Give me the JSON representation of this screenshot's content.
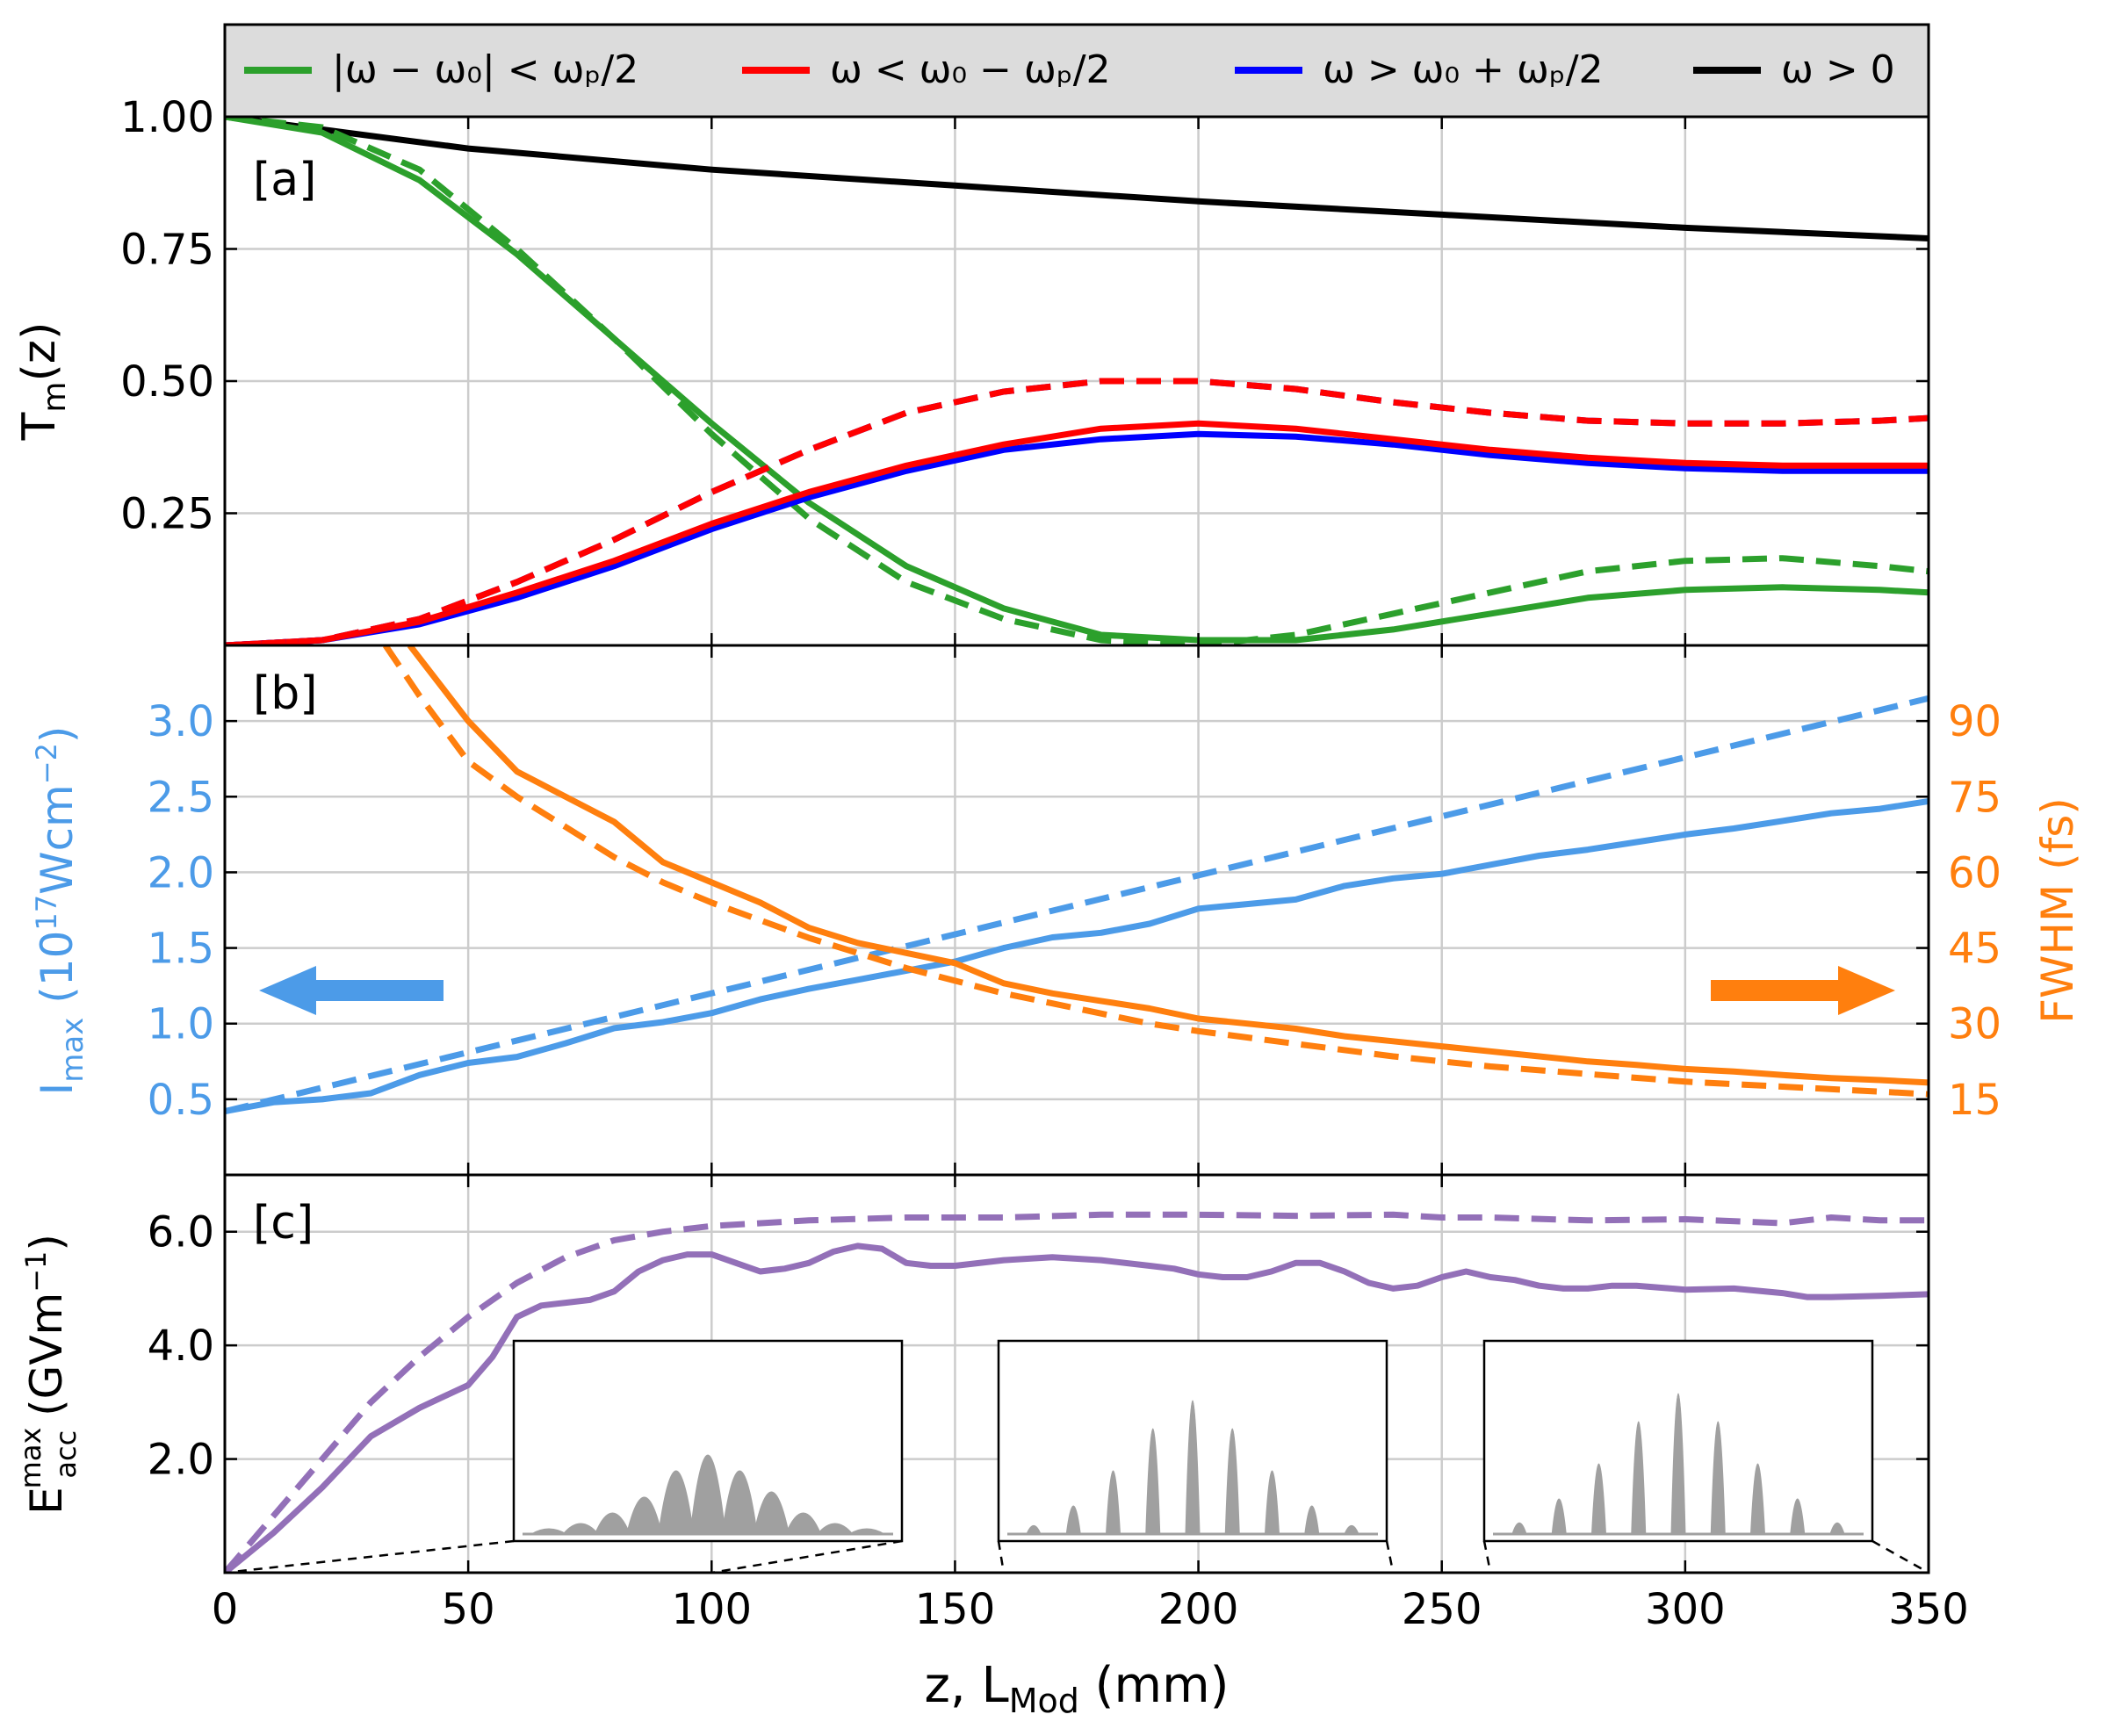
{
  "figure": {
    "x_axis_label": "z, L",
    "x_axis_label_sub": "Mod",
    "x_axis_label_unit": " (mm)"
  },
  "legend": {
    "entries": [
      {
        "label": "|ω − ω₀| < ωₚ/2",
        "color": "#2ca02c"
      },
      {
        "label": "ω < ω₀ − ωₚ/2",
        "color": "#ff0000"
      },
      {
        "label": "ω > ω₀ + ωₚ/2",
        "color": "#0000ff"
      },
      {
        "label": "ω > 0",
        "color": "#000000"
      }
    ]
  },
  "colors": {
    "green": "#2ca02c",
    "red": "#ff0000",
    "blue": "#0000ff",
    "black": "#000000",
    "lightblue": "#4c9be8",
    "orange": "#ff7f0e",
    "purple": "#9370b8",
    "grid": "#cccccc",
    "spike": "#a0a0a0"
  },
  "chart_data": [
    {
      "type": "line",
      "panel_label": "[a]",
      "ylabel": "T",
      "ylabel_sub": "m",
      "ylabel_suffix": "(z)",
      "xlim": [
        0,
        350
      ],
      "ylim": [
        0,
        1.0
      ],
      "x_ticks": [
        0,
        50,
        100,
        150,
        200,
        250,
        300,
        350
      ],
      "y_ticks": [
        0.25,
        0.5,
        0.75,
        1.0
      ],
      "y_tick_labels": [
        "0.25",
        "0.50",
        "0.75",
        "1.00"
      ],
      "series": [
        {
          "name": "ω > 0 (solid)",
          "color": "#000000",
          "dash": false,
          "x": [
            0,
            25,
            50,
            100,
            150,
            200,
            250,
            300,
            350
          ],
          "y": [
            1.0,
            0.97,
            0.94,
            0.9,
            0.87,
            0.84,
            0.815,
            0.79,
            0.77
          ]
        },
        {
          "name": "|ω − ω₀| < ωₚ/2 (solid)",
          "color": "#2ca02c",
          "dash": false,
          "x": [
            0,
            20,
            40,
            60,
            80,
            100,
            120,
            140,
            160,
            180,
            200,
            220,
            240,
            260,
            280,
            300,
            320,
            340,
            350
          ],
          "y": [
            1.0,
            0.97,
            0.88,
            0.74,
            0.58,
            0.42,
            0.27,
            0.15,
            0.07,
            0.02,
            0.01,
            0.01,
            0.03,
            0.06,
            0.09,
            0.105,
            0.11,
            0.105,
            0.1
          ]
        },
        {
          "name": "|ω − ω₀| < ωₚ/2 (dashed)",
          "color": "#2ca02c",
          "dash": true,
          "x": [
            0,
            20,
            40,
            60,
            80,
            100,
            120,
            140,
            160,
            180,
            200,
            220,
            240,
            260,
            280,
            300,
            320,
            340,
            350
          ],
          "y": [
            1.0,
            0.98,
            0.9,
            0.75,
            0.58,
            0.4,
            0.24,
            0.12,
            0.05,
            0.01,
            0.0,
            0.02,
            0.06,
            0.1,
            0.14,
            0.16,
            0.165,
            0.15,
            0.14
          ]
        },
        {
          "name": "ω > ω₀ + ωₚ/2 (solid)",
          "color": "#0000ff",
          "dash": false,
          "x": [
            0,
            20,
            40,
            60,
            80,
            100,
            120,
            140,
            160,
            180,
            200,
            220,
            240,
            260,
            280,
            300,
            320,
            340,
            350
          ],
          "y": [
            0.0,
            0.01,
            0.04,
            0.09,
            0.15,
            0.22,
            0.28,
            0.33,
            0.37,
            0.39,
            0.4,
            0.395,
            0.38,
            0.36,
            0.345,
            0.335,
            0.33,
            0.33,
            0.33
          ]
        },
        {
          "name": "ω < ω₀ − ωₚ/2 (solid)",
          "color": "#ff0000",
          "dash": false,
          "x": [
            0,
            20,
            40,
            60,
            80,
            100,
            120,
            140,
            160,
            180,
            200,
            220,
            240,
            260,
            280,
            300,
            320,
            340,
            350
          ],
          "y": [
            0.0,
            0.01,
            0.045,
            0.1,
            0.16,
            0.23,
            0.29,
            0.34,
            0.38,
            0.41,
            0.42,
            0.41,
            0.39,
            0.37,
            0.355,
            0.345,
            0.34,
            0.34,
            0.34
          ]
        },
        {
          "name": "ω > ω₀ + ωₚ/2 (dashed)",
          "color": "#0000ff",
          "dash": true,
          "x": [
            0,
            20,
            40,
            60,
            80,
            100,
            120,
            140,
            160,
            180,
            200,
            220,
            240,
            260,
            280,
            300,
            320,
            340,
            350
          ],
          "y": [
            0.0,
            0.01,
            0.05,
            0.12,
            0.2,
            0.29,
            0.37,
            0.44,
            0.48,
            0.5,
            0.5,
            0.485,
            0.46,
            0.44,
            0.425,
            0.42,
            0.42,
            0.425,
            0.43
          ]
        },
        {
          "name": "ω < ω₀ − ωₚ/2 (dashed)",
          "color": "#ff0000",
          "dash": true,
          "x": [
            0,
            20,
            40,
            60,
            80,
            100,
            120,
            140,
            160,
            180,
            200,
            220,
            240,
            260,
            280,
            300,
            320,
            340,
            350
          ],
          "y": [
            0.0,
            0.01,
            0.05,
            0.12,
            0.2,
            0.29,
            0.37,
            0.44,
            0.48,
            0.5,
            0.5,
            0.485,
            0.46,
            0.44,
            0.425,
            0.42,
            0.42,
            0.425,
            0.43
          ]
        }
      ]
    },
    {
      "type": "line",
      "panel_label": "[b]",
      "ylabel": "I",
      "ylabel_sub": "max",
      "ylabel_mid": " (10",
      "ylabel_sup": "17",
      "ylabel_rest": "Wcm",
      "ylabel_sup2": "−2",
      "ylabel_end": ")",
      "y2label": "FWHM (fs)",
      "xlim": [
        0,
        350
      ],
      "ylim": [
        0,
        3.5
      ],
      "y2lim": [
        0,
        105
      ],
      "x_ticks": [
        0,
        50,
        100,
        150,
        200,
        250,
        300,
        350
      ],
      "y_ticks": [
        0.5,
        1.0,
        1.5,
        2.0,
        2.5,
        3.0
      ],
      "y_tick_labels": [
        "0.5",
        "1.0",
        "1.5",
        "2.0",
        "2.5",
        "3.0"
      ],
      "y2_ticks": [
        15,
        30,
        45,
        60,
        75,
        90
      ],
      "y2_tick_labels": [
        "15",
        "30",
        "45",
        "60",
        "75",
        "90"
      ],
      "series": [
        {
          "name": "I_max (solid)",
          "axis": "left",
          "color": "#4c9be8",
          "dash": false,
          "x": [
            0,
            10,
            20,
            30,
            40,
            50,
            60,
            70,
            80,
            90,
            100,
            110,
            120,
            130,
            140,
            150,
            160,
            170,
            180,
            190,
            200,
            210,
            220,
            230,
            240,
            250,
            260,
            270,
            280,
            290,
            300,
            310,
            320,
            330,
            340,
            350
          ],
          "y": [
            0.42,
            0.48,
            0.5,
            0.54,
            0.66,
            0.74,
            0.78,
            0.87,
            0.97,
            1.01,
            1.07,
            1.16,
            1.23,
            1.29,
            1.35,
            1.41,
            1.5,
            1.57,
            1.6,
            1.66,
            1.76,
            1.79,
            1.82,
            1.91,
            1.96,
            1.99,
            2.05,
            2.11,
            2.15,
            2.2,
            2.25,
            2.29,
            2.34,
            2.39,
            2.42,
            2.47
          ]
        },
        {
          "name": "I_max (dashed)",
          "axis": "left",
          "color": "#4c9be8",
          "dash": true,
          "x": [
            0,
            350
          ],
          "y": [
            0.42,
            3.15
          ]
        },
        {
          "name": "FWHM (solid)",
          "axis": "right",
          "color": "#ff7f0e",
          "dash": false,
          "x": [
            38,
            50,
            60,
            70,
            80,
            90,
            100,
            110,
            120,
            130,
            140,
            150,
            160,
            170,
            180,
            190,
            200,
            210,
            220,
            230,
            240,
            250,
            260,
            270,
            280,
            290,
            300,
            310,
            320,
            330,
            340,
            350
          ],
          "y": [
            105,
            90,
            80,
            75,
            70,
            62,
            58,
            54,
            49,
            46,
            44,
            42,
            38,
            36,
            34.5,
            33,
            31,
            30,
            29,
            27.5,
            26.5,
            25.5,
            24.5,
            23.5,
            22.5,
            21.8,
            21,
            20.5,
            19.8,
            19.2,
            18.8,
            18.3
          ]
        },
        {
          "name": "FWHM (dashed)",
          "axis": "right",
          "color": "#ff7f0e",
          "dash": true,
          "x": [
            33,
            40,
            50,
            60,
            70,
            80,
            90,
            100,
            110,
            120,
            130,
            140,
            150,
            160,
            170,
            180,
            190,
            200,
            220,
            240,
            260,
            280,
            300,
            320,
            340,
            350
          ],
          "y": [
            105,
            95,
            82,
            75,
            69,
            63,
            58,
            54,
            50.5,
            47,
            44,
            41,
            38.5,
            36,
            34,
            32,
            30,
            28.5,
            26,
            23.5,
            21.5,
            20,
            18.5,
            17.5,
            16.5,
            16
          ]
        }
      ]
    },
    {
      "type": "line",
      "panel_label": "[c]",
      "ylabel": "E",
      "ylabel_sub": "acc",
      "ylabel_sup": "max",
      "ylabel_unit": " (GVm",
      "ylabel_unit_sup": "−1",
      "ylabel_unit_end": ")",
      "xlim": [
        0,
        350
      ],
      "ylim": [
        0,
        7.0
      ],
      "x_ticks": [
        0,
        50,
        100,
        150,
        200,
        250,
        300,
        350
      ],
      "x_tick_labels": [
        "0",
        "50",
        "100",
        "150",
        "200",
        "250",
        "300",
        "350"
      ],
      "y_ticks": [
        2.0,
        4.0,
        6.0
      ],
      "y_tick_labels": [
        "2.0",
        "4.0",
        "6.0"
      ],
      "series": [
        {
          "name": "E_acc (solid)",
          "color": "#9370b8",
          "dash": false,
          "x": [
            0,
            10,
            20,
            30,
            40,
            50,
            55,
            60,
            65,
            70,
            75,
            80,
            85,
            90,
            95,
            100,
            105,
            110,
            115,
            120,
            125,
            130,
            135,
            140,
            145,
            150,
            160,
            170,
            180,
            190,
            195,
            200,
            205,
            210,
            215,
            220,
            225,
            230,
            235,
            240,
            245,
            250,
            255,
            260,
            265,
            270,
            275,
            280,
            285,
            290,
            300,
            310,
            320,
            325,
            330,
            340,
            350
          ],
          "y": [
            0.0,
            0.7,
            1.5,
            2.4,
            2.9,
            3.3,
            3.8,
            4.5,
            4.7,
            4.75,
            4.8,
            4.95,
            5.3,
            5.5,
            5.6,
            5.6,
            5.45,
            5.3,
            5.35,
            5.45,
            5.65,
            5.75,
            5.7,
            5.45,
            5.4,
            5.4,
            5.5,
            5.55,
            5.5,
            5.4,
            5.35,
            5.25,
            5.2,
            5.2,
            5.3,
            5.45,
            5.45,
            5.3,
            5.1,
            5.0,
            5.05,
            5.2,
            5.3,
            5.2,
            5.15,
            5.05,
            5.0,
            5.0,
            5.05,
            5.05,
            4.98,
            5.0,
            4.92,
            4.85,
            4.85,
            4.87,
            4.9
          ]
        },
        {
          "name": "E_acc (dashed)",
          "color": "#9370b8",
          "dash": true,
          "x": [
            0,
            10,
            20,
            30,
            40,
            50,
            60,
            70,
            80,
            90,
            100,
            120,
            140,
            160,
            180,
            200,
            220,
            240,
            250,
            260,
            280,
            300,
            320,
            330,
            340,
            350
          ],
          "y": [
            0.0,
            1.0,
            2.0,
            3.0,
            3.8,
            4.5,
            5.1,
            5.55,
            5.85,
            6.0,
            6.1,
            6.2,
            6.25,
            6.25,
            6.3,
            6.3,
            6.28,
            6.3,
            6.25,
            6.25,
            6.2,
            6.22,
            6.15,
            6.25,
            6.2,
            6.2
          ]
        }
      ],
      "insets": [
        {
          "x_range": [
            0,
            100
          ],
          "peaks": [
            0.05,
            0.1,
            0.2,
            0.35,
            0.6,
            0.75,
            0.6,
            0.4,
            0.2,
            0.1,
            0.05
          ]
        },
        {
          "x_range": [
            160,
            240
          ],
          "peaks": [
            0.06,
            0.2,
            0.45,
            0.75,
            0.95,
            0.75,
            0.45,
            0.2,
            0.06
          ]
        },
        {
          "x_range": [
            260,
            350
          ],
          "peaks": [
            0.08,
            0.25,
            0.5,
            0.8,
            1.0,
            0.8,
            0.5,
            0.25,
            0.08
          ]
        }
      ]
    }
  ]
}
